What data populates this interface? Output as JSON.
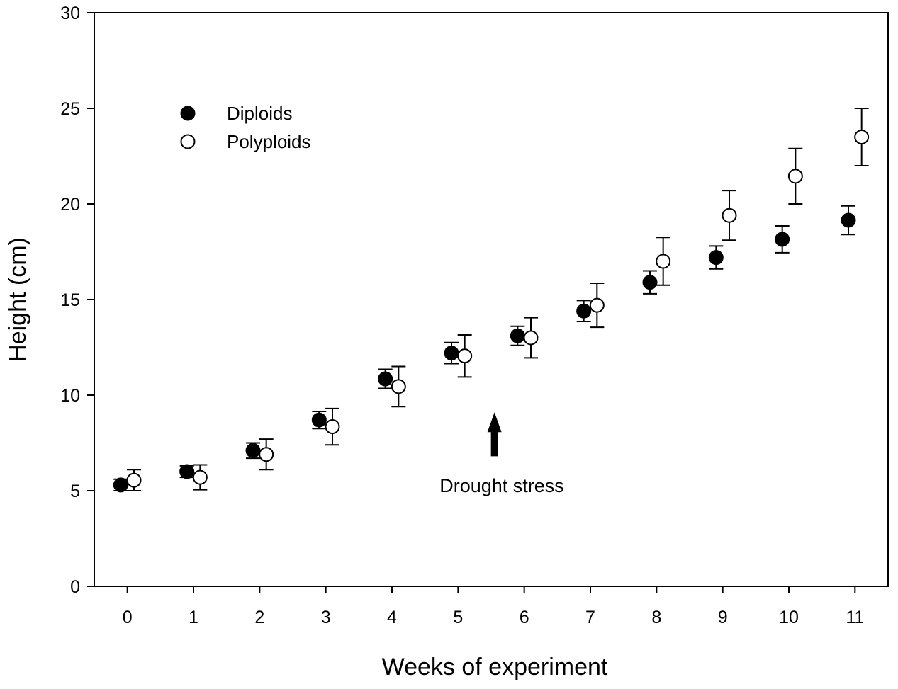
{
  "chart_data": {
    "type": "scatter",
    "title": "",
    "xlabel": "Weeks of experiment",
    "ylabel": "Height (cm)",
    "x": [
      0,
      1,
      2,
      3,
      4,
      5,
      6,
      7,
      8,
      9,
      10,
      11
    ],
    "x_tick_labels": [
      "0",
      "1",
      "2",
      "3",
      "4",
      "5",
      "6",
      "7",
      "8",
      "9",
      "10",
      "11"
    ],
    "y_ticks": [
      0,
      5,
      10,
      15,
      20,
      25,
      30
    ],
    "y_tick_labels": [
      "0",
      "5",
      "10",
      "15",
      "20",
      "25",
      "30"
    ],
    "xlim": [
      -0.5,
      11.5
    ],
    "ylim": [
      0,
      30
    ],
    "grid": false,
    "legend_position": "top-left",
    "series": [
      {
        "name": "Diploids",
        "marker": "filled-circle",
        "color": "#000000",
        "values": [
          5.3,
          6.0,
          7.1,
          8.7,
          10.85,
          12.2,
          13.1,
          14.4,
          15.9,
          17.2,
          18.15,
          19.15
        ],
        "errors": [
          0.3,
          0.3,
          0.4,
          0.45,
          0.5,
          0.55,
          0.5,
          0.55,
          0.6,
          0.6,
          0.7,
          0.75
        ]
      },
      {
        "name": "Polyploids",
        "marker": "open-circle",
        "color": "#ffffff",
        "values": [
          5.55,
          5.7,
          6.9,
          8.35,
          10.45,
          12.05,
          13.0,
          14.7,
          17.0,
          19.4,
          21.45,
          23.5
        ],
        "errors": [
          0.55,
          0.65,
          0.8,
          0.95,
          1.05,
          1.1,
          1.05,
          1.15,
          1.25,
          1.3,
          1.45,
          1.5
        ]
      }
    ],
    "annotations": [
      {
        "text": "Drought stress",
        "arrow_x": 5.55,
        "arrow_from_y": 6.8,
        "arrow_to_y": 9.1
      }
    ]
  }
}
